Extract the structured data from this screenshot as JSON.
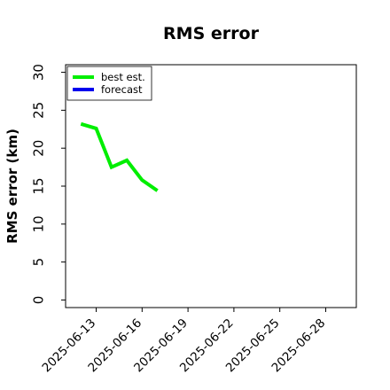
{
  "chart_data": {
    "type": "line",
    "title": "RMS error",
    "xlabel": "",
    "ylabel": "RMS error (km)",
    "xlim": [
      "2025-06-11",
      "2025-06-30"
    ],
    "ylim": [
      -1,
      31
    ],
    "yticks": [
      0,
      5,
      10,
      15,
      20,
      25,
      30
    ],
    "xticks": [
      "2025-06-13",
      "2025-06-16",
      "2025-06-19",
      "2025-06-22",
      "2025-06-25",
      "2025-06-28"
    ],
    "highlighted_tick": "2025-06-19",
    "highlight_color": "#228b22",
    "grid": false,
    "legend_position": "top-left",
    "series": [
      {
        "name": "best est.",
        "color": "#00ee00",
        "x": [
          "2025-06-12",
          "2025-06-13",
          "2025-06-14",
          "2025-06-15",
          "2025-06-16",
          "2025-06-17"
        ],
        "y": [
          23.2,
          22.6,
          17.5,
          18.4,
          15.8,
          14.4
        ]
      },
      {
        "name": "forecast",
        "color": "#0000ee",
        "x": [],
        "y": []
      }
    ]
  }
}
